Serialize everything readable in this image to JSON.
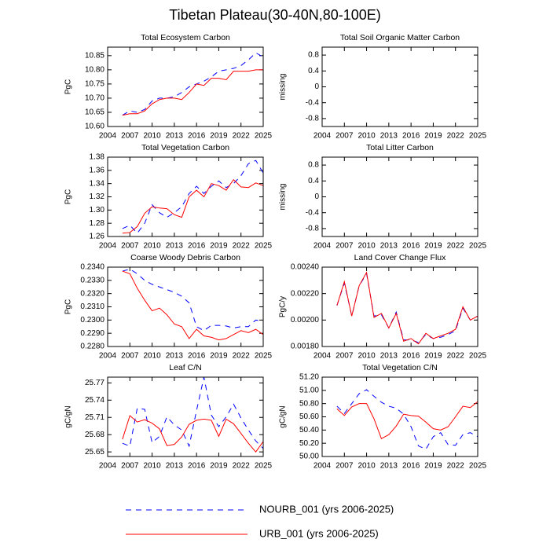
{
  "title": "Tibetan Plateau(30-40N,80-100E)",
  "chart_data": [
    {
      "type": "line",
      "title": "Total Ecosystem Carbon",
      "ylabel": "PgC",
      "x": [
        2006,
        2007,
        2008,
        2009,
        2010,
        2011,
        2012,
        2013,
        2014,
        2015,
        2016,
        2017,
        2018,
        2019,
        2020,
        2021,
        2022,
        2023,
        2024,
        2025
      ],
      "xlim": [
        2004,
        2025
      ],
      "xticks": [
        2004,
        2007,
        2010,
        2013,
        2016,
        2019,
        2022,
        2025
      ],
      "ylim": [
        10.6,
        10.88
      ],
      "yticks": [
        {
          "value": 10.6,
          "label": "10.60"
        },
        10.65,
        {
          "value": 10.7,
          "label": "10.70"
        },
        10.75,
        {
          "value": 10.8,
          "label": "10.80"
        },
        10.85
      ],
      "series": [
        {
          "name": "NOURB_001 (yrs 2006-2025)",
          "color": "#0000ff",
          "line_style": "dashed",
          "values": [
            10.64,
            10.655,
            10.65,
            10.66,
            10.69,
            10.7,
            10.7,
            10.705,
            10.72,
            10.74,
            10.75,
            10.76,
            10.775,
            10.795,
            10.8,
            10.805,
            10.815,
            10.835,
            10.86,
            10.845
          ]
        },
        {
          "name": "URB_001 (yrs 2006-2025)",
          "color": "#ff0000",
          "line_style": "solid",
          "values": [
            10.64,
            10.645,
            10.645,
            10.655,
            10.68,
            10.695,
            10.7,
            10.7,
            10.695,
            10.72,
            10.75,
            10.745,
            10.77,
            10.77,
            10.765,
            10.795,
            10.795,
            10.795,
            10.8,
            10.8
          ]
        }
      ]
    },
    {
      "type": "line",
      "title": "Total Soil Organic Matter Carbon",
      "ylabel": "missing",
      "xlim": [
        2004,
        2025
      ],
      "xticks": [
        2004,
        2007,
        2010,
        2013,
        2016,
        2019,
        2022,
        2025
      ],
      "ylim": [
        -1,
        1
      ],
      "yticks": [
        -0.8,
        -0.4,
        0,
        0.4,
        0.8
      ],
      "series": []
    },
    {
      "type": "line",
      "title": "Total Vegetation Carbon",
      "ylabel": "PgC",
      "x": [
        2006,
        2007,
        2008,
        2009,
        2010,
        2011,
        2012,
        2013,
        2014,
        2015,
        2016,
        2017,
        2018,
        2019,
        2020,
        2021,
        2022,
        2023,
        2024,
        2025
      ],
      "xlim": [
        2004,
        2025
      ],
      "xticks": [
        2004,
        2007,
        2010,
        2013,
        2016,
        2019,
        2022,
        2025
      ],
      "ylim": [
        1.26,
        1.38
      ],
      "yticks": [
        1.26,
        1.28,
        {
          "value": 1.3,
          "label": "1.30"
        },
        1.32,
        1.34,
        1.36,
        1.38
      ],
      "series": [
        {
          "name": "NOURB_001 (yrs 2006-2025)",
          "color": "#0000ff",
          "line_style": "dashed",
          "values": [
            1.272,
            1.277,
            1.265,
            1.28,
            1.308,
            1.296,
            1.289,
            1.296,
            1.305,
            1.325,
            1.336,
            1.325,
            1.336,
            1.344,
            1.334,
            1.34,
            1.352,
            1.37,
            1.375,
            1.356
          ]
        },
        {
          "name": "URB_001 (yrs 2006-2025)",
          "color": "#ff0000",
          "line_style": "solid",
          "values": [
            1.265,
            1.266,
            1.275,
            1.295,
            1.305,
            1.303,
            1.302,
            1.293,
            1.289,
            1.32,
            1.33,
            1.32,
            1.34,
            1.337,
            1.33,
            1.346,
            1.335,
            1.334,
            1.341,
            1.337
          ]
        }
      ]
    },
    {
      "type": "line",
      "title": "Total Litter Carbon",
      "ylabel": "missing",
      "xlim": [
        2004,
        2025
      ],
      "xticks": [
        2004,
        2007,
        2010,
        2013,
        2016,
        2019,
        2022,
        2025
      ],
      "ylim": [
        -1,
        1
      ],
      "yticks": [
        -0.8,
        -0.4,
        0,
        0.4,
        0.8
      ],
      "series": []
    },
    {
      "type": "line",
      "title": "Coarse Woody Debris Carbon",
      "ylabel": "PgC",
      "x": [
        2006,
        2007,
        2008,
        2009,
        2010,
        2011,
        2012,
        2013,
        2014,
        2015,
        2016,
        2017,
        2018,
        2019,
        2020,
        2021,
        2022,
        2023,
        2024,
        2025
      ],
      "xlim": [
        2004,
        2025
      ],
      "xticks": [
        2004,
        2007,
        2010,
        2013,
        2016,
        2019,
        2022,
        2025
      ],
      "ylim": [
        0.228,
        0.234
      ],
      "yticks": [
        {
          "value": 0.228,
          "label": "0.2280"
        },
        {
          "value": 0.229,
          "label": "0.2290"
        },
        {
          "value": 0.23,
          "label": "0.2300"
        },
        {
          "value": 0.231,
          "label": "0.2310"
        },
        {
          "value": 0.232,
          "label": "0.2320"
        },
        {
          "value": 0.233,
          "label": "0.2330"
        },
        {
          "value": 0.234,
          "label": "0.2340"
        }
      ],
      "series": [
        {
          "name": "NOURB_001 (yrs 2006-2025)",
          "color": "#0000ff",
          "line_style": "dashed",
          "values": [
            0.2337,
            0.23385,
            0.2335,
            0.233,
            0.2327,
            0.2325,
            0.2323,
            0.2321,
            0.2318,
            0.2313,
            0.2295,
            0.2292,
            0.2296,
            0.2296,
            0.22955,
            0.2294,
            0.2295,
            0.2295,
            0.23,
            0.2299
          ]
        },
        {
          "name": "URB_001 (yrs 2006-2025)",
          "color": "#ff0000",
          "line_style": "solid",
          "values": [
            0.2337,
            0.2335,
            0.2324,
            0.2315,
            0.2307,
            0.2309,
            0.2304,
            0.2297,
            0.2295,
            0.2286,
            0.2293,
            0.2288,
            0.2287,
            0.2285,
            0.2286,
            0.2289,
            0.2292,
            0.22905,
            0.2293,
            0.2289
          ]
        }
      ]
    },
    {
      "type": "line",
      "title": "Land Cover Change Flux",
      "ylabel": "PgC/y",
      "x": [
        2006,
        2007,
        2008,
        2009,
        2010,
        2011,
        2012,
        2013,
        2014,
        2015,
        2016,
        2017,
        2018,
        2019,
        2020,
        2021,
        2022,
        2023,
        2024,
        2025
      ],
      "xlim": [
        2004,
        2025
      ],
      "xticks": [
        2004,
        2007,
        2010,
        2013,
        2016,
        2019,
        2022,
        2025
      ],
      "ylim": [
        0.0018,
        0.0024
      ],
      "yticks": [
        {
          "value": 0.0018,
          "label": "0.00180"
        },
        {
          "value": 0.002,
          "label": "0.00200"
        },
        {
          "value": 0.0022,
          "label": "0.00220"
        },
        {
          "value": 0.0024,
          "label": "0.00240"
        }
      ],
      "series": [
        {
          "name": "NOURB_001 (yrs 2006-2025)",
          "color": "#0000ff",
          "line_style": "dashed",
          "values": [
            0.00211,
            0.00228,
            0.00203,
            0.00226,
            0.00235,
            0.00203,
            0.00204,
            0.00194,
            0.00206,
            0.00185,
            0.00185,
            0.00183,
            0.00189,
            0.00186,
            0.00187,
            0.00189,
            0.00192,
            0.00209,
            0.002,
            0.00203
          ]
        },
        {
          "name": "URB_001 (yrs 2006-2025)",
          "color": "#ff0000",
          "line_style": "solid",
          "values": [
            0.00211,
            0.00229,
            0.00203,
            0.00226,
            0.00236,
            0.00202,
            0.00205,
            0.00194,
            0.00205,
            0.00184,
            0.00186,
            0.00182,
            0.0019,
            0.00186,
            0.00188,
            0.0019,
            0.00193,
            0.0021,
            0.002,
            0.00203
          ]
        }
      ]
    },
    {
      "type": "line",
      "title": "Leaf C/N",
      "ylabel": "gC/gN",
      "x": [
        2006,
        2007,
        2008,
        2009,
        2010,
        2011,
        2012,
        2013,
        2014,
        2015,
        2016,
        2017,
        2018,
        2019,
        2020,
        2021,
        2022,
        2023,
        2024,
        2025
      ],
      "xlim": [
        2004,
        2025
      ],
      "xticks": [
        2004,
        2007,
        2010,
        2013,
        2016,
        2019,
        2022,
        2025
      ],
      "ylim": [
        25.642,
        25.78
      ],
      "yticks": [
        25.65,
        25.68,
        25.71,
        25.74,
        25.77
      ],
      "series": [
        {
          "name": "NOURB_001 (yrs 2006-2025)",
          "color": "#0000ff",
          "line_style": "dashed",
          "values": [
            25.665,
            25.66,
            25.726,
            25.724,
            25.666,
            25.677,
            25.711,
            25.697,
            25.688,
            25.66,
            25.722,
            25.78,
            25.714,
            25.694,
            25.711,
            25.733,
            25.709,
            25.688,
            25.669,
            25.656
          ]
        },
        {
          "name": "URB_001 (yrs 2006-2025)",
          "color": "#ff0000",
          "line_style": "solid",
          "values": [
            25.672,
            25.713,
            25.702,
            25.706,
            25.7,
            25.69,
            25.661,
            25.663,
            25.676,
            25.698,
            25.705,
            25.707,
            25.705,
            25.677,
            25.707,
            25.699,
            25.682,
            25.665,
            25.65,
            25.668
          ]
        }
      ]
    },
    {
      "type": "line",
      "title": "Total Vegetation C/N",
      "ylabel": "gC/gN",
      "x": [
        2006,
        2007,
        2008,
        2009,
        2010,
        2011,
        2012,
        2013,
        2014,
        2015,
        2016,
        2017,
        2018,
        2019,
        2020,
        2021,
        2022,
        2023,
        2024,
        2025
      ],
      "xlim": [
        2004,
        2025
      ],
      "xticks": [
        2004,
        2007,
        2010,
        2013,
        2016,
        2019,
        2022,
        2025
      ],
      "ylim": [
        50,
        51.2
      ],
      "yticks": [
        {
          "value": 50,
          "label": "50.00"
        },
        {
          "value": 50.2,
          "label": "50.20"
        },
        {
          "value": 50.4,
          "label": "50.40"
        },
        {
          "value": 50.6,
          "label": "50.60"
        },
        {
          "value": 50.8,
          "label": "50.80"
        },
        {
          "value": 51,
          "label": "51.00"
        },
        {
          "value": 51.2,
          "label": "51.20"
        }
      ],
      "series": [
        {
          "name": "NOURB_001 (yrs 2006-2025)",
          "color": "#0000ff",
          "line_style": "dashed",
          "values": [
            50.76,
            50.65,
            50.8,
            50.95,
            51.01,
            50.91,
            50.82,
            50.76,
            50.73,
            50.64,
            50.45,
            50.16,
            50.11,
            50.3,
            50.36,
            50.18,
            50.17,
            50.33,
            50.36,
            50.3
          ]
        },
        {
          "name": "URB_001 (yrs 2006-2025)",
          "color": "#ff0000",
          "line_style": "solid",
          "values": [
            50.72,
            50.62,
            50.75,
            50.8,
            50.8,
            50.57,
            50.27,
            50.33,
            50.46,
            50.64,
            50.62,
            50.61,
            50.52,
            50.42,
            50.4,
            50.45,
            50.6,
            50.76,
            50.74,
            50.83
          ]
        }
      ]
    }
  ]
}
